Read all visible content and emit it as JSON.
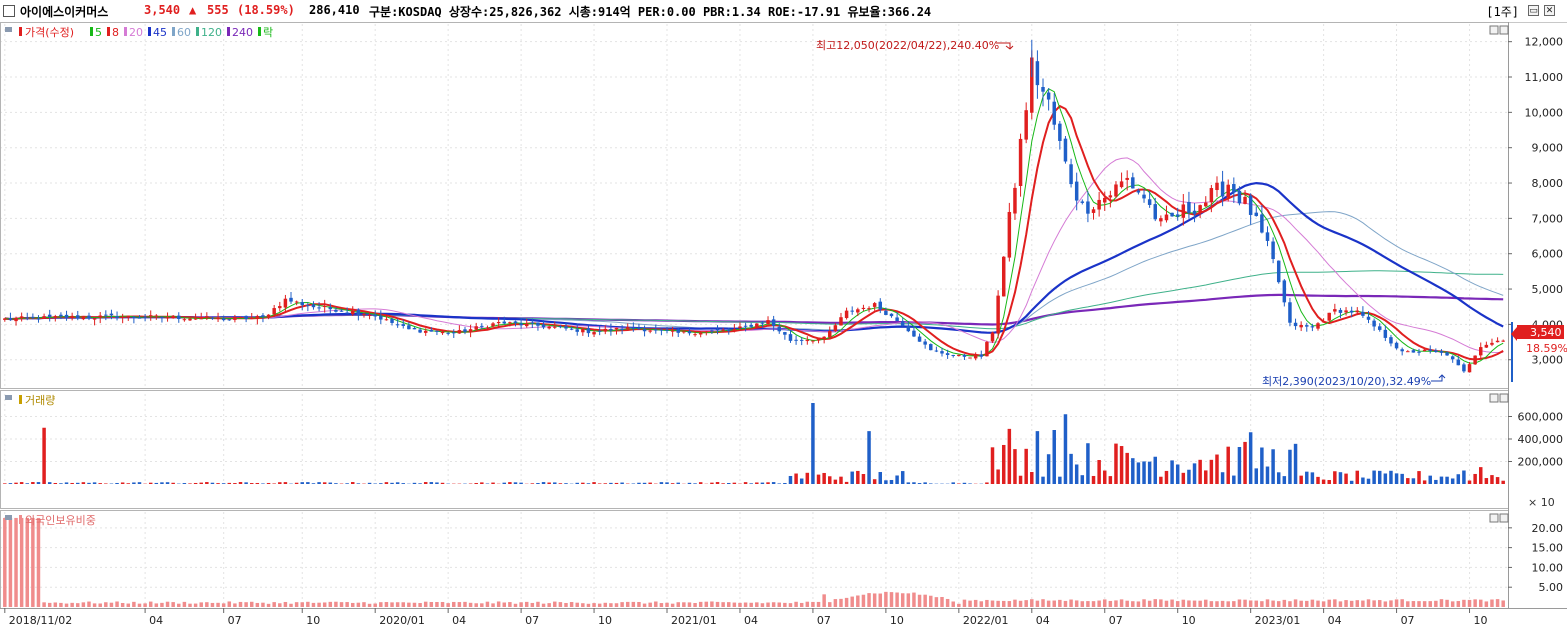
{
  "header": {
    "name": "아이에스이커머스",
    "price": "3,540",
    "change_arrow": "▲",
    "change": "555",
    "change_pct": "(18.59%)",
    "volume": "286,410",
    "info": "구분:KOSDAQ 상장수:25,826,362 시총:914억 PER:0.00 PBR:1.34 ROE:-17.91 유보율:366.24",
    "period": "[1주]"
  },
  "legend": {
    "price_label": "가격(수정)",
    "ma": [
      {
        "label": "5",
        "color": "#17b817"
      },
      {
        "label": "8",
        "color": "#e01f1f"
      },
      {
        "label": "20",
        "color": "#d57bd5"
      },
      {
        "label": "45",
        "color": "#1a33c8"
      },
      {
        "label": "60",
        "color": "#7fa5c8"
      },
      {
        "label": "120",
        "color": "#3fb18a"
      },
      {
        "label": "240",
        "color": "#7a28b8"
      }
    ],
    "down_label": "락",
    "volume_label": "거래량",
    "foreign_label": "외국인보유비중"
  },
  "annotations": {
    "high": "최고12,050(2022/04/22),240.40%",
    "low": "최저2,390(2023/10/20),32.49%",
    "current_price": "3,540",
    "current_pct": "18.59%",
    "volume_unit": "× 10"
  },
  "colors": {
    "up": "#e01f1f",
    "down": "#1f5fc8",
    "grid": "#e3e3e3",
    "foreign": "#f08c8c"
  },
  "chart_data": {
    "type": "candlestick",
    "price_axis": {
      "ticks": [
        3000,
        4000,
        5000,
        6000,
        7000,
        8000,
        9000,
        10000,
        11000,
        12000
      ],
      "labels": [
        "3,000",
        "4,000",
        "5,000",
        "6,000",
        "7,000",
        "8,000",
        "9,000",
        "10,000",
        "11,000",
        "12,000"
      ],
      "ylim": [
        2200,
        12500
      ]
    },
    "volume_axis": {
      "ticks": [
        200000,
        400000,
        600000
      ],
      "labels": [
        "200,000",
        "400,000",
        "600,000"
      ],
      "ylim": [
        0,
        800000
      ]
    },
    "foreign_axis": {
      "ticks": [
        5,
        10,
        15,
        20
      ],
      "labels": [
        "5.00",
        "10.00",
        "15.00",
        "20.00"
      ],
      "ylim": [
        0,
        24
      ]
    },
    "x_labels": [
      "2018/11/02",
      "04",
      "07",
      "10",
      "2020/01",
      "04",
      "07",
      "10",
      "2021/01",
      "04",
      "07",
      "10",
      "2022/01",
      "04",
      "07",
      "10",
      "2023/01",
      "04",
      "07",
      "10"
    ],
    "x_label_weeks": [
      0,
      25,
      39,
      53,
      66,
      79,
      92,
      105,
      118,
      131,
      144,
      157,
      170,
      183,
      196,
      209,
      222,
      235,
      248,
      261
    ],
    "price_anchors": [
      [
        0,
        4150
      ],
      [
        10,
        4200
      ],
      [
        20,
        4220
      ],
      [
        30,
        4200
      ],
      [
        40,
        4150
      ],
      [
        46,
        4200
      ],
      [
        50,
        4700
      ],
      [
        55,
        4500
      ],
      [
        65,
        4300
      ],
      [
        72,
        3850
      ],
      [
        80,
        3750
      ],
      [
        88,
        4050
      ],
      [
        96,
        3950
      ],
      [
        104,
        3800
      ],
      [
        112,
        3900
      ],
      [
        120,
        3750
      ],
      [
        130,
        3850
      ],
      [
        136,
        4100
      ],
      [
        140,
        3550
      ],
      [
        146,
        3600
      ],
      [
        150,
        4350
      ],
      [
        155,
        4550
      ],
      [
        160,
        4000
      ],
      [
        165,
        3250
      ],
      [
        170,
        3100
      ],
      [
        174,
        3100
      ],
      [
        176,
        3800
      ],
      [
        180,
        8000
      ],
      [
        183,
        11300
      ],
      [
        186,
        10200
      ],
      [
        189,
        8500
      ],
      [
        192,
        7300
      ],
      [
        196,
        7600
      ],
      [
        200,
        8100
      ],
      [
        203,
        7600
      ],
      [
        206,
        6800
      ],
      [
        210,
        7200
      ],
      [
        214,
        7500
      ],
      [
        218,
        8000
      ],
      [
        222,
        7200
      ],
      [
        226,
        5800
      ],
      [
        229,
        4000
      ],
      [
        233,
        3900
      ],
      [
        237,
        4400
      ],
      [
        241,
        4350
      ],
      [
        245,
        3800
      ],
      [
        249,
        3200
      ],
      [
        253,
        3250
      ],
      [
        257,
        3150
      ],
      [
        260,
        2650
      ],
      [
        263,
        3400
      ],
      [
        266,
        3540
      ]
    ],
    "candles": {
      "weeks": 268,
      "last_close": 3540
    },
    "ma_lines": {
      "ma5": "5-week moving average",
      "ma8": "8-week moving average",
      "ma20": "20-week moving average",
      "ma45": "45-week moving average",
      "ma60": "60-week moving average",
      "ma120": "120-week moving average",
      "ma240": "240-week moving average"
    },
    "volume_peaks": [
      [
        7,
        500000
      ],
      [
        144,
        720000
      ],
      [
        154,
        470000
      ],
      [
        179,
        490000
      ],
      [
        184,
        470000
      ],
      [
        187,
        480000
      ],
      [
        189,
        620000
      ],
      [
        222,
        460000
      ],
      [
        260,
        120000
      ],
      [
        263,
        150000
      ]
    ],
    "foreign_ratio_early": 22.5,
    "foreign_ratio_base": 0.6
  }
}
